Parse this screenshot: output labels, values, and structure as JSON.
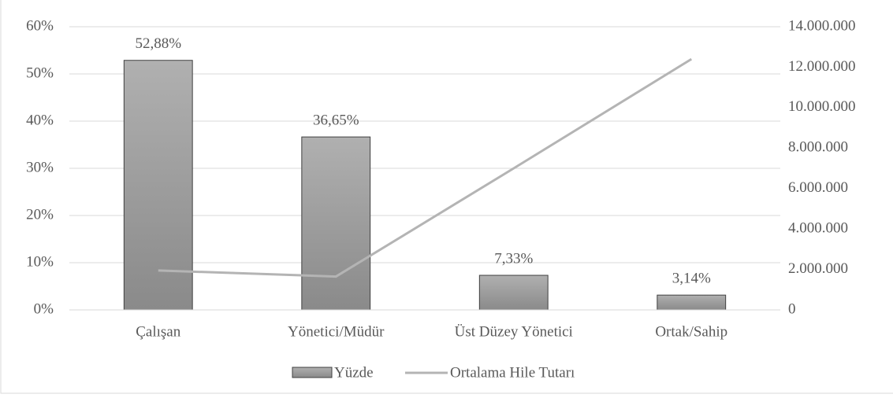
{
  "chart_data": {
    "type": "bar",
    "categories": [
      "Çalışan",
      "Yönetici/Müdür",
      "Üst Düzey Yönetici",
      "Ortak/Sahip"
    ],
    "series": [
      {
        "name": "Yüzde",
        "type": "bar",
        "color": "#a6a6a6",
        "values": [
          52.88,
          36.65,
          7.33,
          3.14
        ],
        "value_labels": [
          "52,88%",
          "36,65%",
          "7,33%",
          "3,14%"
        ]
      },
      {
        "name": "Ortalama Hile Tutarı",
        "type": "line",
        "axis": "y2",
        "color": "#b4b4b4",
        "values": [
          1950000,
          1650000,
          7000000,
          12400000
        ]
      }
    ],
    "ylim": [
      0,
      60
    ],
    "yticks": [
      {
        "value": 0,
        "label": "0%"
      },
      {
        "value": 10,
        "label": "10%"
      },
      {
        "value": 20,
        "label": "20%"
      },
      {
        "value": 30,
        "label": "30%"
      },
      {
        "value": 40,
        "label": "40%"
      },
      {
        "value": 50,
        "label": "50%"
      },
      {
        "value": 60,
        "label": "60%"
      }
    ],
    "y2lim": [
      0,
      14000000
    ],
    "y2ticks": [
      0,
      {
        "value": 2000000,
        "label": "2.000.000"
      },
      {
        "value": 4000000,
        "label": "4.000.000"
      },
      {
        "value": 6000000,
        "label": "6.000.000"
      },
      {
        "value": 8000000,
        "label": "8.000.000"
      },
      {
        "value": 10000000,
        "label": "10.000.000"
      },
      {
        "value": 12000000,
        "label": "12.000.000"
      },
      {
        "value": 14000000,
        "label": "14.000.000"
      }
    ],
    "grid": true,
    "legend": "bottom"
  }
}
